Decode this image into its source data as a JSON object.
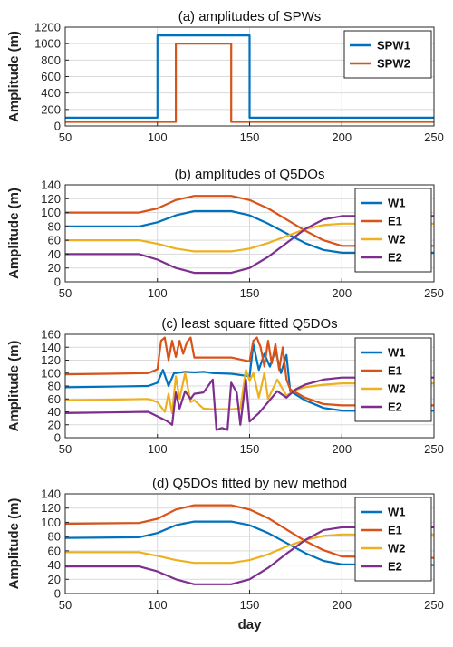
{
  "chart_data": [
    {
      "type": "line",
      "title": "(a) amplitudes of SPWs",
      "xlabel": "",
      "ylabel": "Amplitude (m)",
      "xlim": [
        50,
        250
      ],
      "ylim": [
        0,
        1200
      ],
      "xticks": [
        50,
        100,
        150,
        200,
        250
      ],
      "yticks": [
        0,
        200,
        400,
        600,
        800,
        1000,
        1200
      ],
      "grid": true,
      "legend": "top-right",
      "series": [
        {
          "name": "SPW1",
          "color": "#0072BD",
          "x": [
            50,
            100,
            100,
            150,
            150,
            250
          ],
          "y": [
            100,
            100,
            1100,
            1100,
            100,
            100
          ]
        },
        {
          "name": "SPW2",
          "color": "#D95319",
          "x": [
            50,
            110,
            110,
            140,
            140,
            250
          ],
          "y": [
            50,
            50,
            1000,
            1000,
            50,
            50
          ]
        }
      ]
    },
    {
      "type": "line",
      "title": "(b) amplitudes of Q5DOs",
      "xlabel": "",
      "ylabel": "Amplitude (m)",
      "xlim": [
        50,
        250
      ],
      "ylim": [
        0,
        140
      ],
      "xticks": [
        50,
        100,
        150,
        200,
        250
      ],
      "yticks": [
        0,
        20,
        40,
        60,
        80,
        100,
        120,
        140
      ],
      "grid": true,
      "legend": "top-right",
      "series": [
        {
          "name": "W1",
          "color": "#0072BD",
          "x": [
            50,
            90,
            100,
            110,
            120,
            140,
            150,
            160,
            170,
            180,
            190,
            200,
            250
          ],
          "y": [
            80,
            80,
            86,
            96,
            102,
            102,
            96,
            84,
            70,
            56,
            46,
            42,
            42
          ]
        },
        {
          "name": "E1",
          "color": "#D95319",
          "x": [
            50,
            90,
            100,
            110,
            120,
            140,
            150,
            160,
            170,
            180,
            190,
            200,
            250
          ],
          "y": [
            100,
            100,
            106,
            118,
            124,
            124,
            118,
            106,
            90,
            74,
            60,
            52,
            52
          ]
        },
        {
          "name": "W2",
          "color": "#EDB120",
          "x": [
            50,
            90,
            100,
            110,
            120,
            140,
            150,
            160,
            170,
            180,
            190,
            200,
            250
          ],
          "y": [
            60,
            60,
            55,
            48,
            44,
            44,
            48,
            56,
            66,
            76,
            82,
            84,
            84
          ]
        },
        {
          "name": "E2",
          "color": "#7E2F8E",
          "x": [
            50,
            90,
            100,
            110,
            120,
            140,
            150,
            160,
            170,
            180,
            190,
            200,
            250
          ],
          "y": [
            40,
            40,
            32,
            20,
            13,
            13,
            20,
            36,
            56,
            76,
            90,
            95,
            95
          ]
        }
      ]
    },
    {
      "type": "line",
      "title": "(c) least square fitted Q5DOs",
      "xlabel": "",
      "ylabel": "Amplitude (m)",
      "xlim": [
        50,
        250
      ],
      "ylim": [
        0,
        160
      ],
      "xticks": [
        50,
        100,
        150,
        200,
        250
      ],
      "yticks": [
        0,
        20,
        40,
        60,
        80,
        100,
        120,
        140,
        160
      ],
      "grid": true,
      "legend": "top-right",
      "series": [
        {
          "name": "W1",
          "color": "#0072BD",
          "x": [
            50,
            95,
            100,
            103,
            106,
            109,
            110,
            115,
            120,
            125,
            130,
            140,
            150,
            152,
            155,
            158,
            161,
            164,
            167,
            170,
            172,
            180,
            190,
            200,
            250
          ],
          "y": [
            78,
            80,
            85,
            105,
            80,
            100,
            100,
            102,
            101,
            102,
            100,
            99,
            95,
            145,
            105,
            130,
            110,
            135,
            100,
            128,
            72,
            58,
            46,
            42,
            42
          ]
        },
        {
          "name": "E1",
          "color": "#D95319",
          "x": [
            50,
            95,
            100,
            102,
            104,
            106,
            108,
            110,
            112,
            114,
            116,
            118,
            120,
            130,
            140,
            150,
            152,
            154,
            156,
            158,
            160,
            162,
            164,
            166,
            168,
            170,
            172,
            180,
            190,
            200,
            250
          ],
          "y": [
            98,
            100,
            106,
            150,
            155,
            120,
            150,
            125,
            150,
            130,
            148,
            155,
            124,
            124,
            124,
            118,
            150,
            155,
            140,
            110,
            150,
            115,
            145,
            105,
            140,
            90,
            75,
            62,
            52,
            50,
            50
          ]
        },
        {
          "name": "W2",
          "color": "#EDB120",
          "x": [
            50,
            95,
            100,
            104,
            106,
            108,
            110,
            112,
            115,
            118,
            120,
            125,
            130,
            135,
            140,
            145,
            148,
            150,
            152,
            155,
            158,
            160,
            165,
            170,
            175,
            180,
            190,
            200,
            250
          ],
          "y": [
            58,
            60,
            55,
            40,
            68,
            38,
            95,
            60,
            100,
            55,
            58,
            45,
            44,
            44,
            44,
            45,
            105,
            88,
            100,
            62,
            100,
            60,
            90,
            65,
            74,
            78,
            82,
            84,
            84
          ]
        },
        {
          "name": "E2",
          "color": "#7E2F8E",
          "x": [
            50,
            95,
            100,
            105,
            108,
            110,
            112,
            115,
            118,
            120,
            125,
            130,
            132,
            135,
            138,
            140,
            143,
            145,
            148,
            150,
            155,
            160,
            165,
            170,
            175,
            180,
            190,
            200,
            250
          ],
          "y": [
            38,
            40,
            33,
            26,
            20,
            70,
            45,
            72,
            60,
            68,
            70,
            90,
            12,
            15,
            12,
            85,
            70,
            20,
            90,
            25,
            38,
            55,
            72,
            62,
            75,
            82,
            90,
            93,
            93
          ]
        }
      ]
    },
    {
      "type": "line",
      "title": "(d) Q5DOs fitted by new method",
      "xlabel": "day",
      "ylabel": "Amplitude (m)",
      "xlim": [
        50,
        250
      ],
      "ylim": [
        0,
        140
      ],
      "xticks": [
        50,
        100,
        150,
        200,
        250
      ],
      "yticks": [
        0,
        20,
        40,
        60,
        80,
        100,
        120,
        140
      ],
      "grid": true,
      "legend": "top-right",
      "series": [
        {
          "name": "W1",
          "color": "#0072BD",
          "x": [
            50,
            90,
            100,
            110,
            120,
            140,
            150,
            160,
            170,
            180,
            190,
            200,
            250
          ],
          "y": [
            78,
            79,
            85,
            96,
            101,
            101,
            96,
            85,
            71,
            57,
            46,
            41,
            40
          ]
        },
        {
          "name": "E1",
          "color": "#D95319",
          "x": [
            50,
            90,
            100,
            110,
            120,
            140,
            150,
            160,
            170,
            180,
            190,
            200,
            250
          ],
          "y": [
            98,
            99,
            105,
            118,
            124,
            124,
            118,
            106,
            90,
            74,
            61,
            52,
            50
          ]
        },
        {
          "name": "W2",
          "color": "#EDB120",
          "x": [
            50,
            90,
            100,
            110,
            120,
            140,
            150,
            160,
            170,
            180,
            190,
            200,
            250
          ],
          "y": [
            58,
            58,
            53,
            47,
            43,
            43,
            47,
            55,
            66,
            75,
            81,
            83,
            83
          ]
        },
        {
          "name": "E2",
          "color": "#7E2F8E",
          "x": [
            50,
            90,
            100,
            110,
            120,
            140,
            150,
            160,
            170,
            180,
            190,
            200,
            250
          ],
          "y": [
            38,
            38,
            31,
            20,
            13,
            13,
            20,
            36,
            56,
            75,
            89,
            93,
            93
          ]
        }
      ]
    }
  ]
}
